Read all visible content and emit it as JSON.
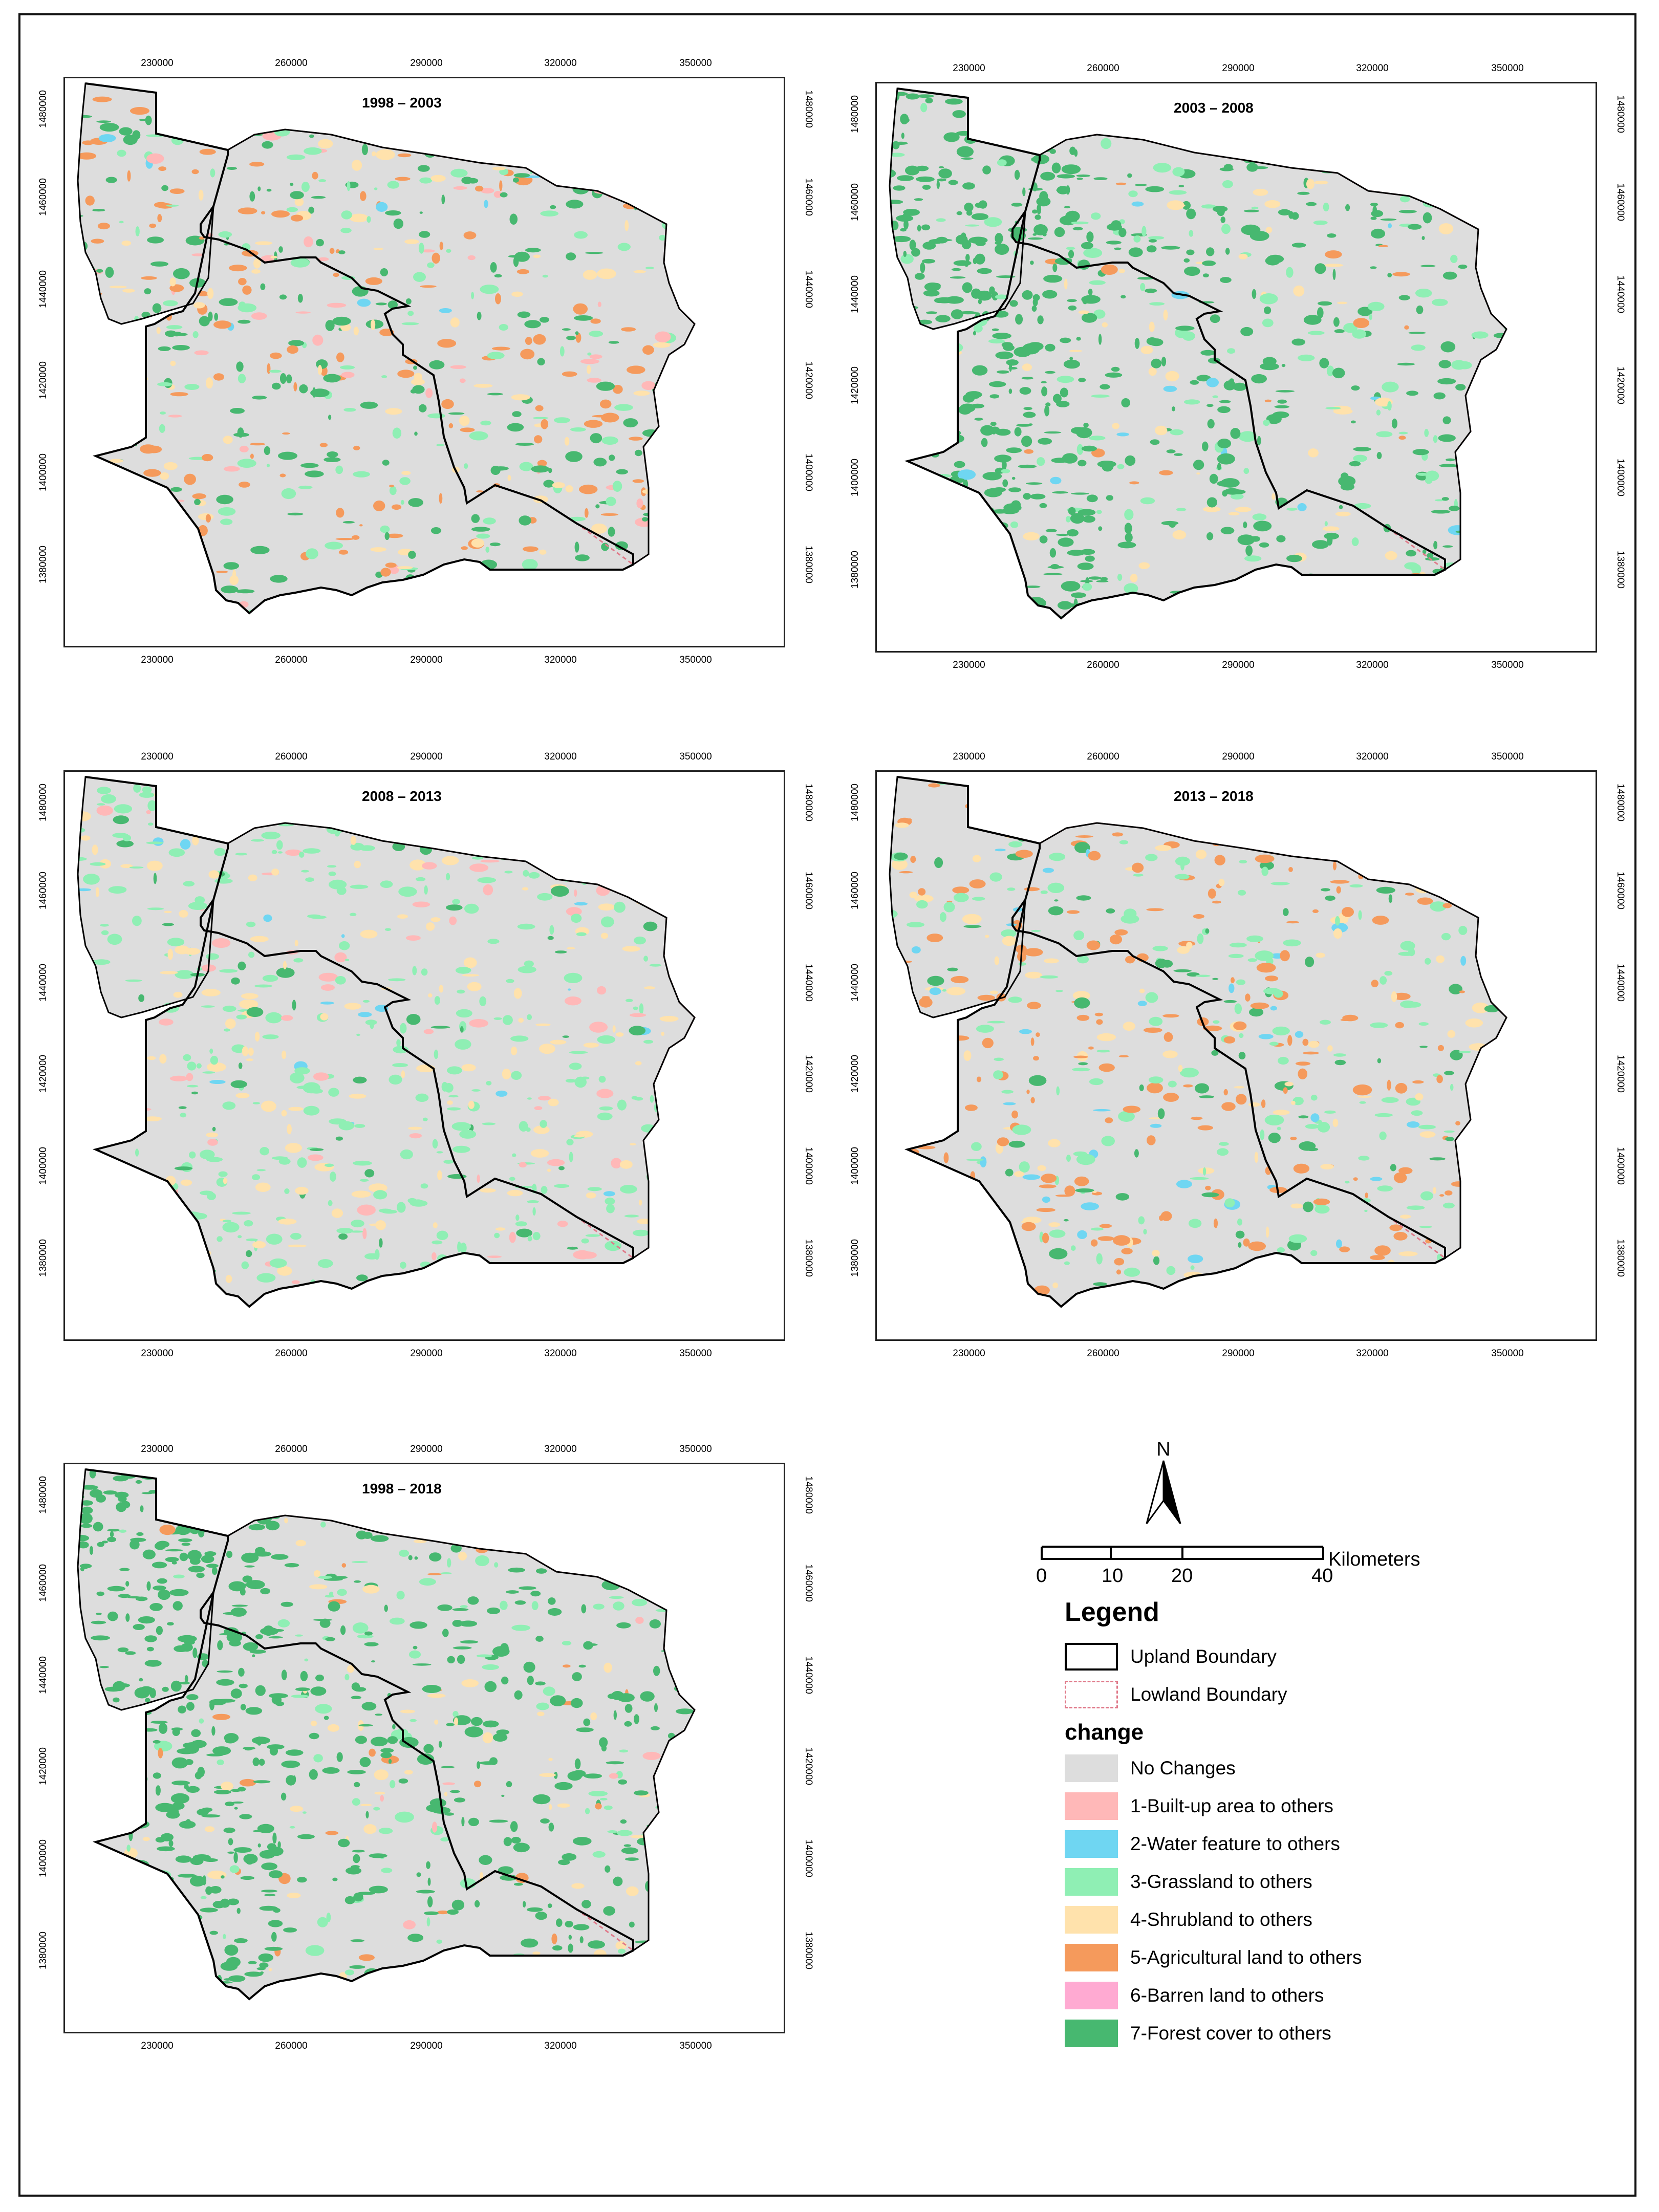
{
  "panels": [
    {
      "title": "1998 – 2003",
      "dominant": "agri-forest"
    },
    {
      "title": "2003 – 2008",
      "dominant": "forest"
    },
    {
      "title": "2008 – 2013",
      "dominant": "grass"
    },
    {
      "title": "2013 – 2018",
      "dominant": "agri-grass"
    },
    {
      "title": "1998 – 2018",
      "dominant": "forest-heavy"
    }
  ],
  "axes": {
    "x_ticks": [
      "230000",
      "260000",
      "290000",
      "320000",
      "350000"
    ],
    "y_ticks": [
      "1480000",
      "1460000",
      "1440000",
      "1420000",
      "1400000",
      "1380000"
    ]
  },
  "north_arrow": {
    "label": "N"
  },
  "scale_bar": {
    "labels": [
      "0",
      "10",
      "20",
      "40"
    ],
    "unit": "Kilometers"
  },
  "legend": {
    "title": "Legend",
    "boundaries": [
      {
        "label": "Upland Boundary",
        "style": "solid",
        "color": "#000000"
      },
      {
        "label": "Lowland Boundary",
        "style": "dashed",
        "color": "#e07a8a"
      }
    ],
    "change_title": "change",
    "classes": [
      {
        "label": "No Changes",
        "color": "#dddddd"
      },
      {
        "label": "1-Built-up area to others",
        "color": "#ffb8b8"
      },
      {
        "label": "2-Water feature to others",
        "color": "#6fd6f2"
      },
      {
        "label": "3-Grassland to others",
        "color": "#8fefb4"
      },
      {
        "label": "4-Shrubland to others",
        "color": "#ffe2ac"
      },
      {
        "label": "5-Agricultural land to others",
        "color": "#f59a5c"
      },
      {
        "label": "6-Barren land to others",
        "color": "#ffaad2"
      },
      {
        "label": "7-Forest cover to others",
        "color": "#47b870"
      }
    ]
  }
}
